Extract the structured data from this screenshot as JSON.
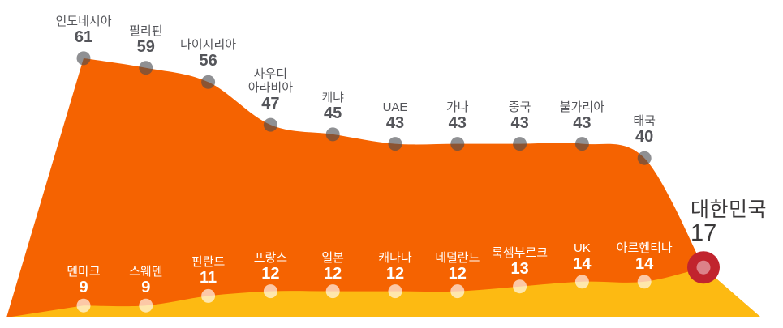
{
  "chart_data": {
    "type": "area",
    "title": "",
    "legend": "none",
    "axes_visible": false,
    "series": [
      {
        "id": "upper",
        "fill_color": "#F56301",
        "marker_color": "rgba(75,76,80,0.62)",
        "label_color": "#54555A",
        "points": [
          {
            "label": "인도네시아",
            "value": 61
          },
          {
            "label": "필리핀",
            "value": 59
          },
          {
            "label": "나이지리아",
            "value": 56
          },
          {
            "label": "사우디\n아라비아",
            "value": 47
          },
          {
            "label": "케냐",
            "value": 45
          },
          {
            "label": "UAE",
            "value": 43
          },
          {
            "label": "가나",
            "value": 43
          },
          {
            "label": "중국",
            "value": 43
          },
          {
            "label": "불가리아",
            "value": 43
          },
          {
            "label": "태국",
            "value": 40
          }
        ]
      },
      {
        "id": "lower",
        "fill_color": "#FDBA12",
        "marker_color": "rgba(255,255,255,0.65)",
        "label_color": "#FFFFFF",
        "points": [
          {
            "label": "덴마크",
            "value": 9
          },
          {
            "label": "스웨덴",
            "value": 9
          },
          {
            "label": "핀란드",
            "value": 11
          },
          {
            "label": "프랑스",
            "value": 12
          },
          {
            "label": "일본",
            "value": 12
          },
          {
            "label": "캐나다",
            "value": 12
          },
          {
            "label": "네덜란드",
            "value": 12
          },
          {
            "label": "룩셈부르크",
            "value": 13
          },
          {
            "label": "UK",
            "value": 14
          },
          {
            "label": "아르헨티나",
            "value": 14
          }
        ]
      }
    ],
    "highlight": {
      "label": "대한민국",
      "value": 17,
      "marker_outer_color": "#C1242E",
      "marker_inner_color": "#DC8289",
      "label_color": "#3A3839"
    }
  }
}
